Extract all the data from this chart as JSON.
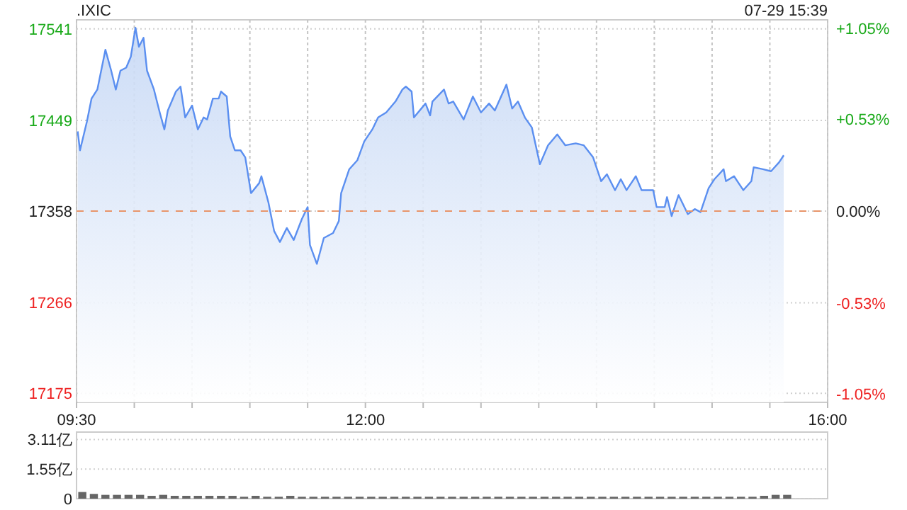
{
  "chart_data": [
    {
      "type": "area",
      "title": ".IXIC",
      "annotations": [
        "07-29 15:39"
      ],
      "x": [
        9.51,
        9.53,
        9.59,
        9.63,
        9.68,
        9.75,
        9.8,
        9.84,
        9.88,
        9.93,
        9.97,
        10.01,
        10.04,
        10.08,
        10.11,
        10.17,
        10.22,
        10.26,
        10.29,
        10.36,
        10.4,
        10.44,
        10.5,
        10.55,
        10.6,
        10.63,
        10.68,
        10.73,
        10.75,
        10.8,
        10.83,
        10.87,
        10.92,
        10.96,
        11.01,
        11.08,
        11.1,
        11.16,
        11.21,
        11.26,
        11.32,
        11.38,
        11.45,
        11.5,
        11.52,
        11.58,
        11.64,
        11.72,
        11.77,
        11.79,
        11.86,
        11.93,
        11.99,
        12.06,
        12.11,
        12.18,
        12.26,
        12.32,
        12.35,
        12.4,
        12.42,
        12.52,
        12.56,
        12.58,
        12.68,
        12.72,
        12.76,
        12.85,
        12.93,
        13.0,
        13.07,
        13.12,
        13.22,
        13.27,
        13.32,
        13.38,
        13.44,
        13.51,
        13.58,
        13.66,
        13.73,
        13.82,
        13.89,
        13.97,
        14.04,
        14.09,
        14.16,
        14.21,
        14.26,
        14.34,
        14.39,
        14.49,
        14.52,
        14.59,
        14.61,
        14.65,
        14.71,
        14.79,
        14.85,
        14.9,
        14.97,
        15.02,
        15.1,
        15.12,
        15.19,
        15.27,
        15.34,
        15.36,
        15.44,
        15.51,
        15.58,
        15.62
      ],
      "series": [
        {
          "color": "#5b8ff0",
          "values": [
            17438,
            17419,
            17448,
            17471,
            17480,
            17520,
            17499,
            17480,
            17499,
            17502,
            17513,
            17542,
            17523,
            17532,
            17499,
            17480,
            17457,
            17440,
            17459,
            17478,
            17483,
            17452,
            17464,
            17440,
            17452,
            17450,
            17471,
            17471,
            17478,
            17473,
            17433,
            17419,
            17419,
            17412,
            17376,
            17386,
            17393,
            17367,
            17338,
            17327,
            17341,
            17329,
            17350,
            17362,
            17324,
            17305,
            17331,
            17336,
            17348,
            17376,
            17400,
            17409,
            17428,
            17440,
            17452,
            17457,
            17468,
            17480,
            17483,
            17478,
            17452,
            17466,
            17454,
            17468,
            17480,
            17466,
            17468,
            17450,
            17473,
            17457,
            17466,
            17459,
            17485,
            17461,
            17468,
            17452,
            17442,
            17405,
            17424,
            17435,
            17424,
            17426,
            17424,
            17412,
            17388,
            17395,
            17379,
            17390,
            17379,
            17393,
            17379,
            17379,
            17362,
            17362,
            17372,
            17353,
            17374,
            17355,
            17360,
            17357,
            17381,
            17390,
            17400,
            17388,
            17393,
            17379,
            17388,
            17402,
            17400,
            17398,
            17407,
            17414
          ]
        }
      ],
      "xlim": [
        9.5,
        16
      ],
      "xticks": [
        {
          "value": 9.5,
          "label": "09:30"
        },
        {
          "value": 10,
          "label": null
        },
        {
          "value": 10.5,
          "label": null
        },
        {
          "value": 11,
          "label": null
        },
        {
          "value": 11.5,
          "label": null
        },
        {
          "value": 12,
          "label": "12:00"
        },
        {
          "value": 12.5,
          "label": null
        },
        {
          "value": 13,
          "label": null
        },
        {
          "value": 13.5,
          "label": null
        },
        {
          "value": 14,
          "label": null
        },
        {
          "value": 14.5,
          "label": null
        },
        {
          "value": 15,
          "label": null
        },
        {
          "value": 15.5,
          "label": null
        },
        {
          "value": 16,
          "label": "16:00"
        }
      ],
      "ylim": [
        17166,
        17550
      ],
      "yticks": [
        17175,
        17266,
        17358,
        17449,
        17541
      ],
      "y2lim": [
        -1.1,
        1.1
      ],
      "y2ticks": [
        {
          "value": 1.05,
          "label": "+1.05%"
        },
        {
          "value": 0.53,
          "label": "+0.53%"
        },
        {
          "value": 0,
          "label": "0.00%"
        },
        {
          "value": -0.53,
          "label": "-0.53%"
        },
        {
          "value": -1.05,
          "label": "-1.05%"
        }
      ],
      "ref_lines": [
        {
          "axis": "y",
          "value": 17358,
          "color": "#e8956a",
          "line_style": "dashed"
        }
      ],
      "grid": true
    },
    {
      "type": "bar",
      "tick_labels": "y",
      "grid": "y",
      "xlim": [
        9.5,
        16
      ],
      "ylim": [
        0,
        3.5
      ],
      "yticks": [
        0,
        {
          "value": 1.55,
          "label": "1.55亿"
        },
        {
          "value": 3.11,
          "label": "3.11亿"
        }
      ],
      "x": [
        9.55,
        9.65,
        9.75,
        9.85,
        9.95,
        10.05,
        10.15,
        10.25,
        10.35,
        10.45,
        10.55,
        10.65,
        10.75,
        10.85,
        10.95,
        11.05,
        11.15,
        11.25,
        11.35,
        11.45,
        11.55,
        11.65,
        11.75,
        11.85,
        11.95,
        12.05,
        12.15,
        12.25,
        12.35,
        12.45,
        12.55,
        12.65,
        12.75,
        12.85,
        12.95,
        13.05,
        13.15,
        13.25,
        13.35,
        13.45,
        13.55,
        13.65,
        13.75,
        13.85,
        13.95,
        14.05,
        14.15,
        14.25,
        14.35,
        14.45,
        14.55,
        14.65,
        14.75,
        14.85,
        14.95,
        15.05,
        15.15,
        15.25,
        15.35,
        15.45,
        15.55,
        15.65
      ],
      "series": [
        {
          "color": "#666666",
          "values": [
            0.35,
            0.25,
            0.2,
            0.2,
            0.2,
            0.2,
            0.15,
            0.2,
            0.15,
            0.15,
            0.15,
            0.15,
            0.15,
            0.15,
            0.1,
            0.15,
            0.1,
            0.1,
            0.15,
            0.1,
            0.1,
            0.1,
            0.1,
            0.1,
            0.1,
            0.1,
            0.1,
            0.1,
            0.1,
            0.1,
            0.1,
            0.1,
            0.1,
            0.1,
            0.1,
            0.1,
            0.1,
            0.1,
            0.1,
            0.1,
            0.1,
            0.1,
            0.1,
            0.1,
            0.1,
            0.1,
            0.1,
            0.1,
            0.1,
            0.1,
            0.1,
            0.1,
            0.1,
            0.1,
            0.1,
            0.1,
            0.1,
            0.1,
            0.1,
            0.15,
            0.2,
            0.2
          ]
        }
      ]
    }
  ]
}
